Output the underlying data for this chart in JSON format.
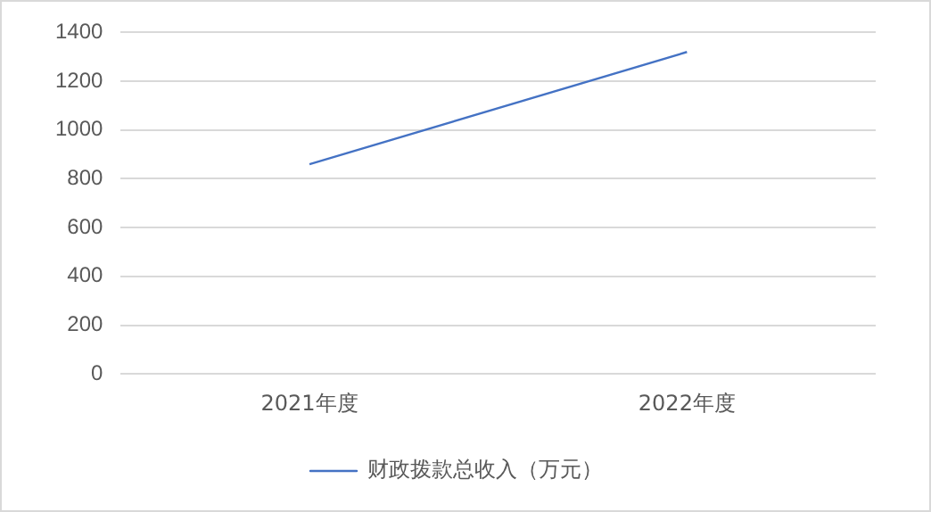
{
  "chart_data": {
    "type": "line",
    "categories": [
      "2021年度",
      "2022年度"
    ],
    "series": [
      {
        "name": "财政拨款总收入（万元）",
        "color": "#4472c4",
        "values": [
          860,
          1320
        ]
      }
    ],
    "ylim": [
      0,
      1400
    ],
    "yticks": [
      0,
      200,
      400,
      600,
      800,
      1000,
      1200,
      1400
    ],
    "grid": "y",
    "legend": "bottom",
    "marker": "none"
  }
}
